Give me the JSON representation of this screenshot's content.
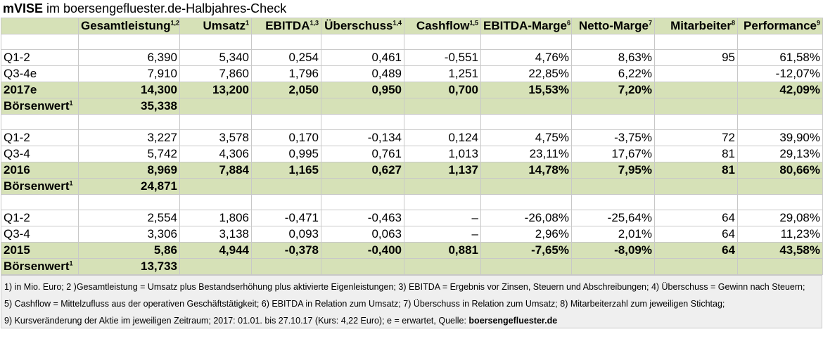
{
  "title": {
    "company": "mVISE",
    "rest": " im boersengefluester.de-Halbjahres-Check"
  },
  "headers": [
    {
      "label": "",
      "sup": ""
    },
    {
      "label": "Gesamtleistung",
      "sup": "1,2"
    },
    {
      "label": "Umsatz",
      "sup": "1"
    },
    {
      "label": "EBITDA",
      "sup": "1,3"
    },
    {
      "label": "Überschuss",
      "sup": "1,4"
    },
    {
      "label": "Cashflow",
      "sup": "1,5"
    },
    {
      "label": "EBITDA-Marge",
      "sup": "6"
    },
    {
      "label": "Netto-Marge",
      "sup": "7"
    },
    {
      "label": "Mitarbeiter",
      "sup": "8"
    },
    {
      "label": "Performance",
      "sup": "9"
    }
  ],
  "sections": [
    {
      "rows": [
        [
          "Q1-2",
          "6,390",
          "5,340",
          "0,254",
          "0,461",
          "-0,551",
          "4,76%",
          "8,63%",
          "95",
          "61,58%"
        ],
        [
          "Q3-4e",
          "7,910",
          "7,860",
          "1,796",
          "0,489",
          "1,251",
          "22,85%",
          "6,22%",
          "",
          "-12,07%"
        ]
      ],
      "total": [
        "2017e",
        "14,300",
        "13,200",
        "2,050",
        "0,950",
        "0,700",
        "15,53%",
        "7,20%",
        "",
        "42,09%"
      ],
      "market": {
        "label": "Börsenwert",
        "sup": "1",
        "value": "35,338"
      }
    },
    {
      "rows": [
        [
          "Q1-2",
          "3,227",
          "3,578",
          "0,170",
          "-0,134",
          "0,124",
          "4,75%",
          "-3,75%",
          "72",
          "39,90%"
        ],
        [
          "Q3-4",
          "5,742",
          "4,306",
          "0,995",
          "0,761",
          "1,013",
          "23,11%",
          "17,67%",
          "81",
          "29,13%"
        ]
      ],
      "total": [
        "2016",
        "8,969",
        "7,884",
        "1,165",
        "0,627",
        "1,137",
        "14,78%",
        "7,95%",
        "81",
        "80,66%"
      ],
      "market": {
        "label": "Börsenwert",
        "sup": "1",
        "value": "24,871"
      }
    },
    {
      "rows": [
        [
          "Q1-2",
          "2,554",
          "1,806",
          "-0,471",
          "-0,463",
          "–",
          "-26,08%",
          "-25,64%",
          "64",
          "29,08%"
        ],
        [
          "Q3-4",
          "3,306",
          "3,138",
          "0,093",
          "0,063",
          "–",
          "2,96%",
          "2,01%",
          "64",
          "11,23%"
        ]
      ],
      "total": [
        "2015",
        "5,86",
        "4,944",
        "-0,378",
        "-0,400",
        "0,881",
        "-7,65%",
        "-8,09%",
        "64",
        "43,58%"
      ],
      "market": {
        "label": "Börsenwert",
        "sup": "1",
        "value": "13,733"
      }
    }
  ],
  "footnotes": {
    "line1": "1) in Mio. Euro; 2 )Gesamtleistung = Umsatz plus Bestandserhöhung plus aktivierte Eigenleistungen; 3) EBITDA = Ergebnis vor Zinsen, Steuern und Abschreibungen; 4) Überschuss = Gewinn nach Steuern;",
    "line2": "5) Cashflow = Mittelzufluss aus der operativen Geschäftstätigkeit; 6) EBITDA in Relation zum Umsatz; 7) Überschuss in Relation zum Umsatz; 8) Mitarbeiterzahl zum jeweiligen Stichtag;",
    "line3_text": "9) Kursveränderung der Aktie im jeweiligen Zeitraum; 2017: 01.01. bis 27.10.17 (Kurs: 4,22 Euro); e = erwartet, Quelle: ",
    "line3_source": "boersengefluester.de"
  },
  "colors": {
    "header_green": "#d6e1b7",
    "border": "#c8c8c8",
    "footer_bg": "#efefef"
  }
}
